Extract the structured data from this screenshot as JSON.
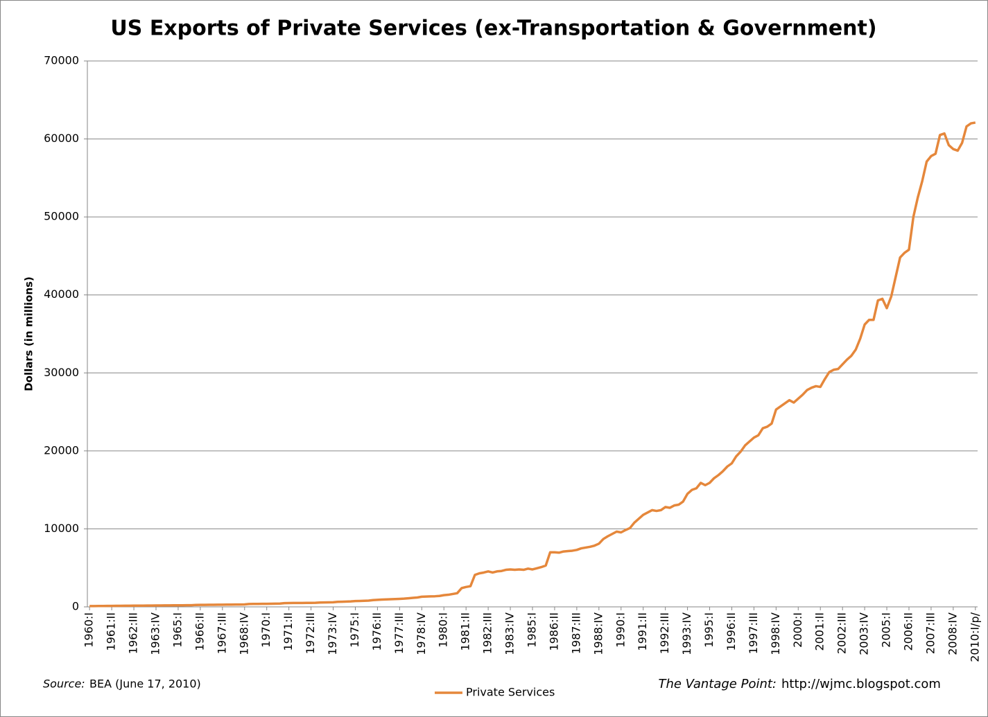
{
  "chart_data": {
    "type": "line",
    "title": "US Exports of Private Services (ex-Transportation & Government)",
    "y_label": "Dollars (in millions)",
    "source_label": "Source:",
    "source": "BEA (June 17, 2010)",
    "credit_label": "The Vantage Point:",
    "credit": "http://wjmc.blogspot.com",
    "ylim": [
      0,
      70000
    ],
    "yticks": [
      0,
      10000,
      20000,
      30000,
      40000,
      50000,
      60000,
      70000
    ],
    "grid": true,
    "categories": [
      "1960:I",
      null,
      null,
      null,
      null,
      "1961:II",
      null,
      null,
      null,
      null,
      "1962:III",
      null,
      null,
      null,
      null,
      "1963:IV",
      null,
      null,
      null,
      null,
      "1965:I",
      null,
      null,
      null,
      null,
      "1966:II",
      null,
      null,
      null,
      null,
      "1967:III",
      null,
      null,
      null,
      null,
      "1968:IV",
      null,
      null,
      null,
      null,
      "1970:I",
      null,
      null,
      null,
      null,
      "1971:II",
      null,
      null,
      null,
      null,
      "1972:III",
      null,
      null,
      null,
      null,
      "1973:IV",
      null,
      null,
      null,
      null,
      "1975:I",
      null,
      null,
      null,
      null,
      "1976:II",
      null,
      null,
      null,
      null,
      "1977:III",
      null,
      null,
      null,
      null,
      "1978:IV",
      null,
      null,
      null,
      null,
      "1980:I",
      null,
      null,
      null,
      null,
      "1981:II",
      null,
      null,
      null,
      null,
      "1982:III",
      null,
      null,
      null,
      null,
      "1983:IV",
      null,
      null,
      null,
      null,
      "1985:I",
      null,
      null,
      null,
      null,
      "1986:II",
      null,
      null,
      null,
      null,
      "1987:III",
      null,
      null,
      null,
      null,
      "1988:IV",
      null,
      null,
      null,
      null,
      "1990:I",
      null,
      null,
      null,
      null,
      "1991:II",
      null,
      null,
      null,
      null,
      "1992:III",
      null,
      null,
      null,
      null,
      "1993:IV",
      null,
      null,
      null,
      null,
      "1995:I",
      null,
      null,
      null,
      null,
      "1996:II",
      null,
      null,
      null,
      null,
      "1997:III",
      null,
      null,
      null,
      null,
      "1998:IV",
      null,
      null,
      null,
      null,
      "2000:I",
      null,
      null,
      null,
      null,
      "2001:II",
      null,
      null,
      null,
      null,
      "2002:III",
      null,
      null,
      null,
      null,
      "2003:IV",
      null,
      null,
      null,
      null,
      "2005:I",
      null,
      null,
      null,
      null,
      "2006:II",
      null,
      null,
      null,
      null,
      "2007:III",
      null,
      null,
      null,
      null,
      "2008:IV",
      null,
      null,
      null,
      null,
      "2010:I/p/"
    ],
    "series": [
      {
        "name": "Private Services",
        "color": "#e5873b",
        "values": [
          100,
          105,
          110,
          115,
          120,
          125,
          130,
          135,
          140,
          145,
          150,
          155,
          160,
          165,
          170,
          175,
          180,
          185,
          190,
          195,
          200,
          205,
          210,
          215,
          250,
          255,
          260,
          265,
          270,
          275,
          280,
          285,
          290,
          295,
          300,
          310,
          370,
          375,
          380,
          385,
          390,
          400,
          410,
          420,
          480,
          490,
          495,
          500,
          505,
          510,
          515,
          520,
          560,
          570,
          580,
          590,
          640,
          660,
          680,
          700,
          740,
          760,
          780,
          800,
          870,
          900,
          930,
          950,
          980,
          1000,
          1020,
          1050,
          1100,
          1150,
          1200,
          1300,
          1320,
          1340,
          1360,
          1400,
          1500,
          1550,
          1650,
          1750,
          2400,
          2550,
          2650,
          4100,
          4300,
          4400,
          4550,
          4400,
          4550,
          4600,
          4750,
          4800,
          4750,
          4800,
          4750,
          4900,
          4800,
          4950,
          5100,
          5300,
          7000,
          7000,
          6950,
          7100,
          7150,
          7200,
          7300,
          7500,
          7600,
          7700,
          7850,
          8100,
          8700,
          9050,
          9350,
          9650,
          9550,
          9850,
          10100,
          10800,
          11300,
          11800,
          12100,
          12400,
          12300,
          12400,
          12800,
          12700,
          13000,
          13100,
          13500,
          14500,
          15000,
          15200,
          15900,
          15600,
          15900,
          16500,
          16900,
          17400,
          18000,
          18400,
          19300,
          19900,
          20700,
          21200,
          21700,
          22000,
          22900,
          23100,
          23500,
          25300,
          25700,
          26100,
          26500,
          26200,
          26700,
          27200,
          27800,
          28100,
          28300,
          28200,
          29200,
          30100,
          30400,
          30500,
          31100,
          31700,
          32200,
          33000,
          34400,
          36200,
          36800,
          36800,
          39300,
          39500,
          38300,
          39800,
          42300,
          44800,
          45400,
          45800,
          50000,
          52500,
          54600,
          57100,
          57800,
          58100,
          60500,
          60700,
          59200,
          58700,
          58500,
          59500,
          61600,
          62000,
          62100
        ]
      }
    ]
  }
}
